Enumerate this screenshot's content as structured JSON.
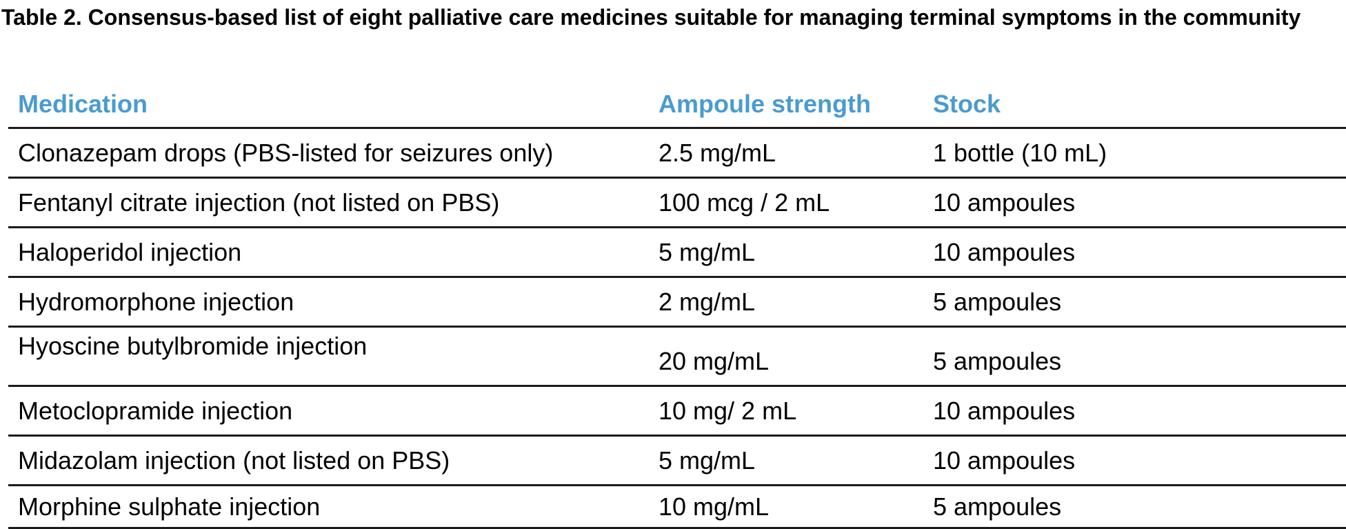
{
  "title": "Table 2. Consensus-based list of eight palliative care medicines suitable for managing terminal symptoms in the community",
  "accent_color": "#4a9bd0",
  "columns": [
    "Medication",
    "Ampoule strength",
    "Stock"
  ],
  "rows": [
    [
      "Clonazepam drops (PBS-listed for seizures only)",
      "2.5 mg/mL",
      "1 bottle (10 mL)"
    ],
    [
      "Fentanyl citrate injection (not listed on PBS)",
      "100 mcg / 2 mL",
      "10 ampoules"
    ],
    [
      "Haloperidol injection",
      "5 mg/mL",
      "10 ampoules"
    ],
    [
      "Hydromorphone injection",
      "2 mg/mL",
      "5 ampoules"
    ],
    [
      "Hyoscine butylbromide injection",
      "20 mg/mL",
      "5 ampoules"
    ],
    [
      "Metoclopramide injection",
      "10 mg/ 2 mL",
      "10 ampoules"
    ],
    [
      "Midazolam injection (not listed on PBS)",
      "5 mg/mL",
      "10 ampoules"
    ],
    [
      "Morphine sulphate injection",
      "10 mg/mL",
      "5 ampoules"
    ]
  ]
}
